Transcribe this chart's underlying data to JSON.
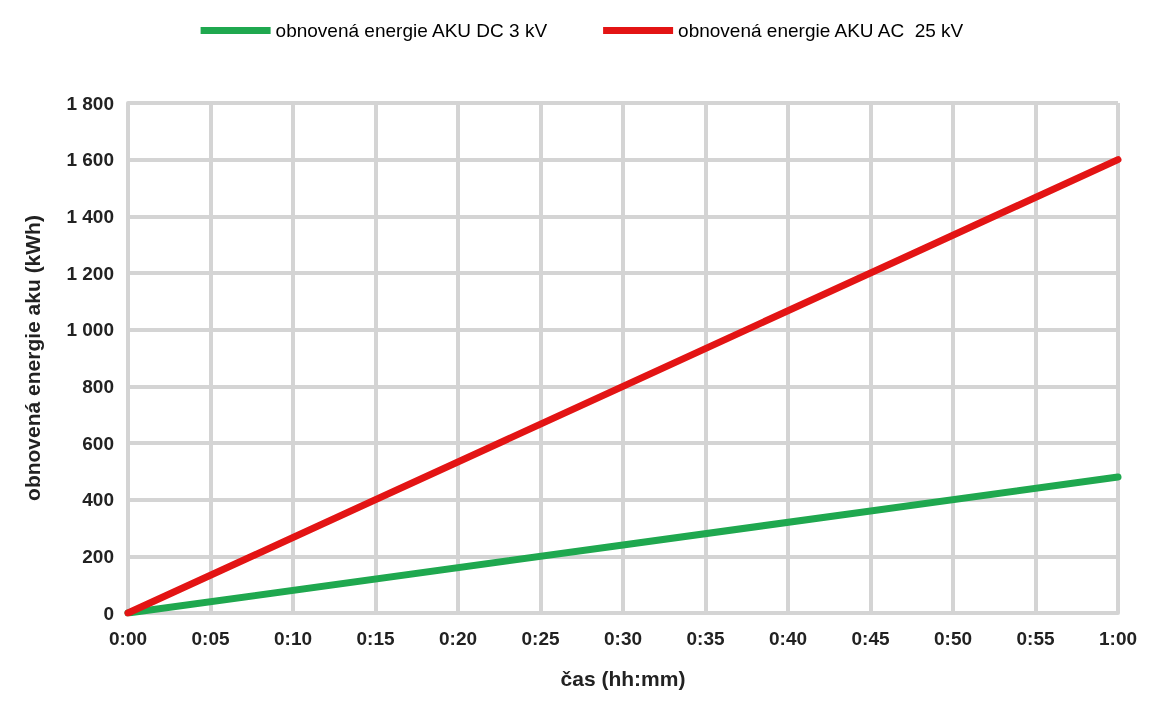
{
  "chart_data": {
    "type": "line",
    "xlabel": "čas (hh:mm)",
    "ylabel": "obnovená energie aku (kWh)",
    "x": [
      0,
      30,
      60
    ],
    "series": [
      {
        "name": "obnovená energie AKU DC 3 kV",
        "color": "#1fa84f",
        "values": [
          0,
          240,
          480
        ]
      },
      {
        "name": "obnovená energie AKU AC  25 kV",
        "color": "#e31414",
        "values": [
          0,
          800,
          1600
        ]
      }
    ],
    "xlim": [
      0,
      60
    ],
    "xticks": [
      {
        "value": 0,
        "label": "0:00"
      },
      {
        "value": 5,
        "label": "0:05"
      },
      {
        "value": 10,
        "label": "0:10"
      },
      {
        "value": 15,
        "label": "0:15"
      },
      {
        "value": 20,
        "label": "0:20"
      },
      {
        "value": 25,
        "label": "0:25"
      },
      {
        "value": 30,
        "label": "0:30"
      },
      {
        "value": 35,
        "label": "0:35"
      },
      {
        "value": 40,
        "label": "0:40"
      },
      {
        "value": 45,
        "label": "0:45"
      },
      {
        "value": 50,
        "label": "0:50"
      },
      {
        "value": 55,
        "label": "0:55"
      },
      {
        "value": 60,
        "label": "1:00"
      }
    ],
    "ylim": [
      0,
      1800
    ],
    "yticks": [
      0,
      200,
      400,
      600,
      800,
      1000,
      1200,
      1400,
      1600,
      1800
    ],
    "grid": true,
    "legend": "top",
    "marker": "none",
    "line_style": "solid"
  }
}
